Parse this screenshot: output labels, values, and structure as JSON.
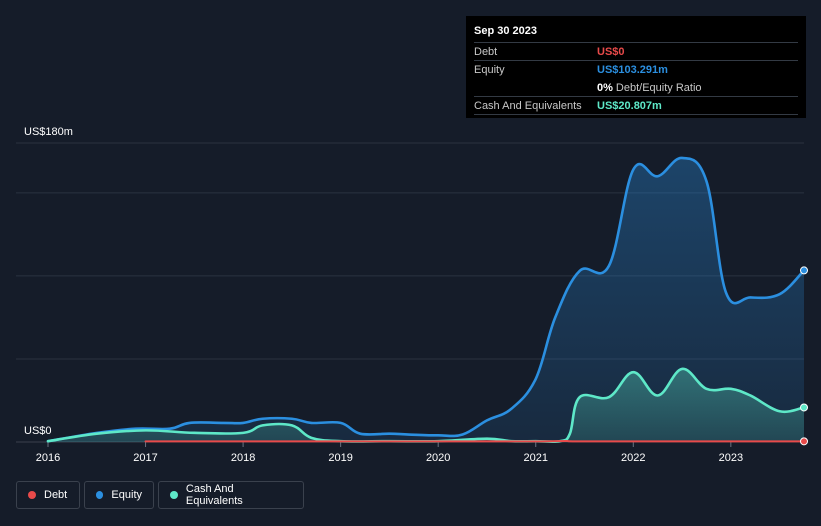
{
  "tooltip": {
    "date": "Sep 30 2023",
    "rows": [
      {
        "label": "Debt",
        "value": "US$0",
        "color": "#e84a4a"
      },
      {
        "label": "Equity",
        "value": "US$103.291m",
        "color": "#2b8fe0"
      },
      {
        "label": "",
        "value": "0%",
        "sub": "Debt/Equity Ratio",
        "color": "#ffffff"
      },
      {
        "label": "Cash And Equivalents",
        "value": "US$20.807m",
        "color": "#5ee8c8"
      }
    ]
  },
  "legend": [
    {
      "label": "Debt",
      "color": "#e84a4a"
    },
    {
      "label": "Equity",
      "color": "#2b8fe0"
    },
    {
      "label": "Cash And Equivalents",
      "color": "#5ee8c8"
    }
  ],
  "chart_data": {
    "type": "area",
    "y_axis_labels": {
      "top": "US$180m",
      "bottom": "US$0"
    },
    "ylim": [
      0,
      180
    ],
    "x_ticks": [
      "2016",
      "2017",
      "2018",
      "2019",
      "2020",
      "2021",
      "2022",
      "2023"
    ],
    "x_tick_values": [
      2016,
      2017,
      2018,
      2019,
      2020,
      2021,
      2022,
      2023
    ],
    "xlim": [
      2016,
      2023.75
    ],
    "grid": true,
    "series": [
      {
        "name": "Debt",
        "color": "#e84a4a",
        "x": [
          2017.0,
          2018.0,
          2019.0,
          2020.0,
          2021.0,
          2021.3,
          2021.4,
          2022.0,
          2023.0,
          2023.75
        ],
        "values": [
          0.4,
          0.4,
          0.4,
          0.4,
          0.4,
          0.6,
          0.4,
          0.4,
          0.4,
          0.4
        ]
      },
      {
        "name": "Equity",
        "color": "#2b8fe0",
        "x": [
          2016.0,
          2016.5,
          2016.9,
          2017.25,
          2017.45,
          2017.8,
          2018.0,
          2018.2,
          2018.5,
          2018.7,
          2019.0,
          2019.2,
          2019.5,
          2019.7,
          2020.0,
          2020.25,
          2020.5,
          2020.75,
          2021.0,
          2021.2,
          2021.45,
          2021.75,
          2022.0,
          2022.25,
          2022.5,
          2022.75,
          2022.95,
          2023.2,
          2023.5,
          2023.75
        ],
        "values": [
          0.5,
          5.5,
          8.0,
          8.0,
          11.5,
          11.5,
          11.5,
          14.0,
          14.0,
          11.5,
          11.5,
          5.0,
          5.0,
          4.5,
          4.0,
          4.5,
          13.0,
          20.0,
          38.0,
          75.0,
          103.0,
          106.0,
          164.0,
          160.0,
          171.0,
          157.0,
          90.0,
          87.0,
          89.0,
          103.3
        ]
      },
      {
        "name": "Cash And Equivalents",
        "color": "#5ee8c8",
        "x": [
          2016.0,
          2016.5,
          2017.0,
          2017.5,
          2018.0,
          2018.2,
          2018.5,
          2018.7,
          2019.0,
          2019.5,
          2020.0,
          2020.5,
          2020.75,
          2021.0,
          2021.25,
          2021.35,
          2021.45,
          2021.75,
          2022.0,
          2022.25,
          2022.5,
          2022.75,
          2023.0,
          2023.2,
          2023.5,
          2023.75
        ],
        "values": [
          0.5,
          5.0,
          7.0,
          5.5,
          5.5,
          10.0,
          10.0,
          2.5,
          0.5,
          0.5,
          0.5,
          2.0,
          0.5,
          0.5,
          0.5,
          5.0,
          27.0,
          27.0,
          42.0,
          28.0,
          44.0,
          32.0,
          32.0,
          28.0,
          18.5,
          20.8
        ]
      }
    ]
  }
}
